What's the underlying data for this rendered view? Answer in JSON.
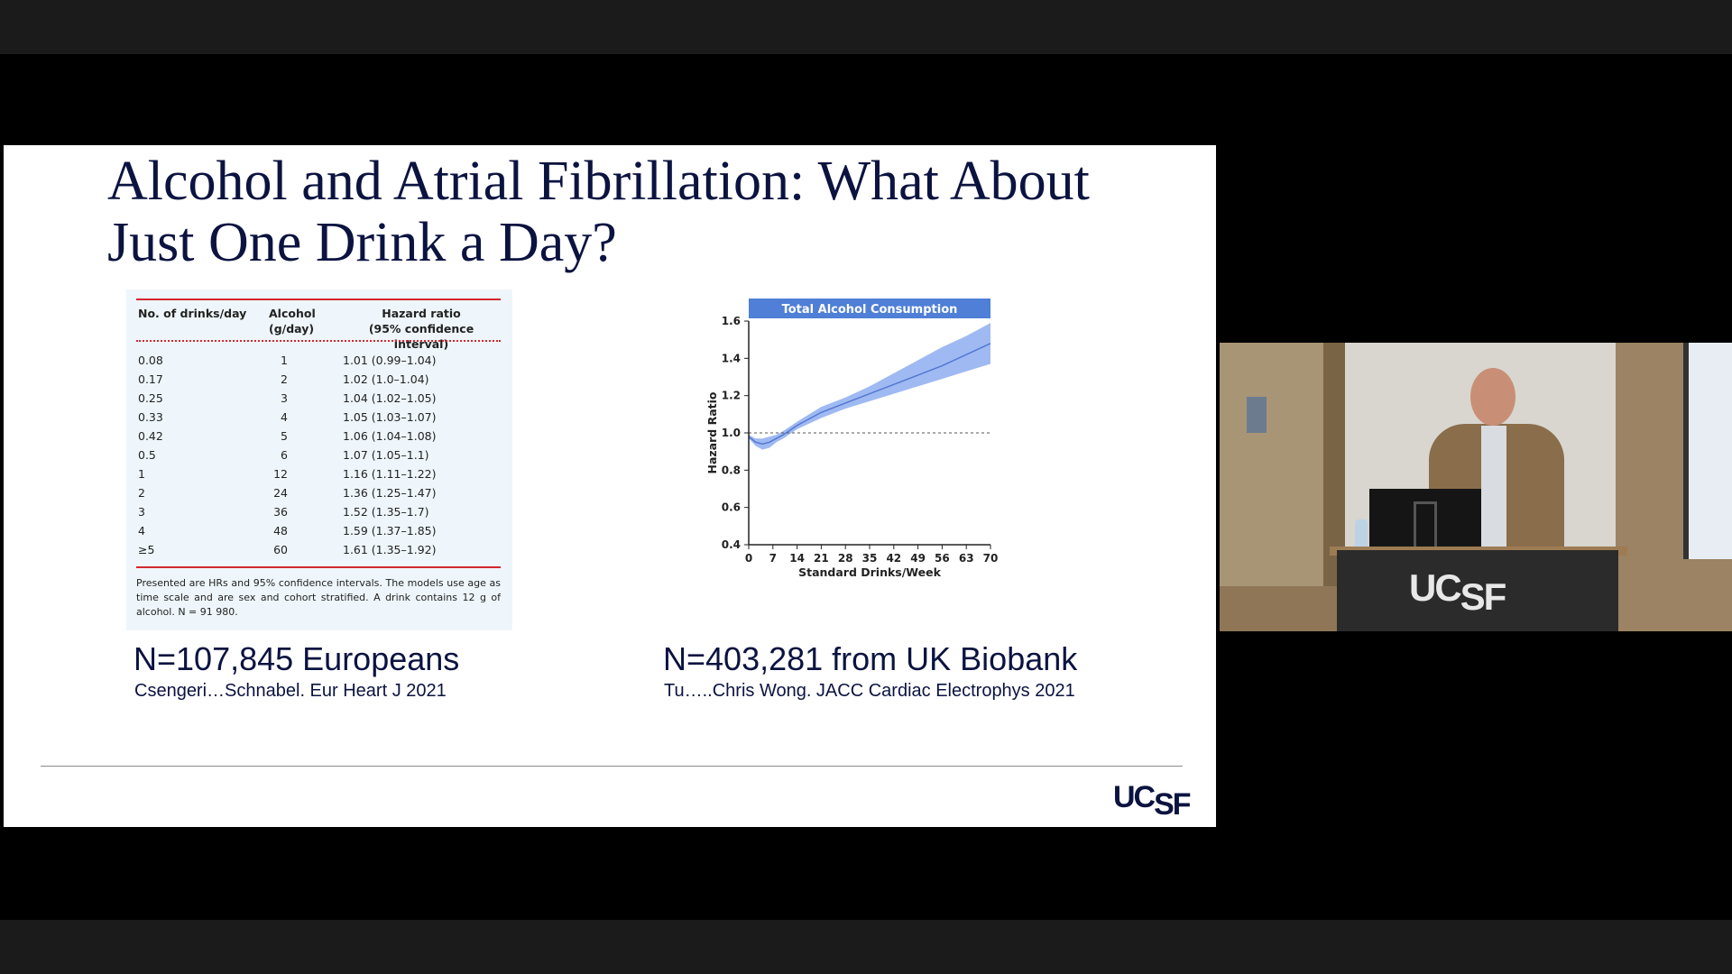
{
  "slide": {
    "title_line1": "Alcohol and Atrial Fibrillation: What About",
    "title_line2": "Just One Drink a Day?",
    "logo": "UCSF",
    "left_figure": {
      "headers": {
        "col1": "No. of drinks/day",
        "col2_line1": "Alcohol",
        "col2_line2": "(g/day)",
        "col3_line1": "Hazard ratio",
        "col3_line2": "(95% confidence interval)"
      },
      "rows": [
        {
          "drinks": "0.08",
          "grams": "1",
          "hr": "1.01 (0.99–1.04)"
        },
        {
          "drinks": "0.17",
          "grams": "2",
          "hr": "1.02 (1.0–1.04)"
        },
        {
          "drinks": "0.25",
          "grams": "3",
          "hr": "1.04 (1.02–1.05)"
        },
        {
          "drinks": "0.33",
          "grams": "4",
          "hr": "1.05 (1.03–1.07)"
        },
        {
          "drinks": "0.42",
          "grams": "5",
          "hr": "1.06 (1.04–1.08)"
        },
        {
          "drinks": "0.5",
          "grams": "6",
          "hr": "1.07 (1.05–1.1)"
        },
        {
          "drinks": "1",
          "grams": "12",
          "hr": "1.16 (1.11–1.22)"
        },
        {
          "drinks": "2",
          "grams": "24",
          "hr": "1.36 (1.25–1.47)"
        },
        {
          "drinks": "3",
          "grams": "36",
          "hr": "1.52 (1.35–1.7)"
        },
        {
          "drinks": "4",
          "grams": "48",
          "hr": "1.59 (1.37–1.85)"
        },
        {
          "drinks": "≥5",
          "grams": "60",
          "hr": "1.61 (1.35–1.92)"
        }
      ],
      "note": "Presented are HRs and 95% confidence intervals. The models use age as time scale and are sex and cohort stratified. A drink contains 12 g of alcohol. N = 91 980.",
      "caption_n": "N=107,845 Europeans",
      "caption_ref": "Csengeri…Schnabel. Eur Heart J 2021"
    },
    "right_figure": {
      "caption_n": "N=403,281 from UK Biobank",
      "caption_ref": "Tu…..Chris Wong. JACC Cardiac Electrophys 2021"
    }
  },
  "webcam": {
    "podium_logo": "UCSF"
  },
  "colors": {
    "title": "#0b1340",
    "table_rule": "#d4262f",
    "chart_header": "#4f7fd6",
    "chart_band": "#8eaef0",
    "chart_line": "#5577d0"
  },
  "chart_data": {
    "type": "line",
    "title": "Total Alcohol Consumption",
    "xlabel": "Standard Drinks/Week",
    "ylabel": "Hazard Ratio",
    "xlim": [
      0,
      70
    ],
    "ylim": [
      0.4,
      1.6
    ],
    "xticks": [
      "0",
      "7",
      "14",
      "21",
      "28",
      "35",
      "42",
      "49",
      "56",
      "63",
      "70"
    ],
    "yticks": [
      "0.4",
      "0.6",
      "0.8",
      "1.0",
      "1.2",
      "1.4",
      "1.6"
    ],
    "reference_line": 1.0,
    "x": [
      0,
      2,
      4,
      6,
      8,
      10,
      14,
      21,
      28,
      35,
      42,
      49,
      56,
      63,
      70
    ],
    "y": [
      0.98,
      0.95,
      0.94,
      0.95,
      0.97,
      0.99,
      1.04,
      1.11,
      1.16,
      1.21,
      1.26,
      1.31,
      1.36,
      1.42,
      1.48
    ],
    "lower": [
      0.97,
      0.93,
      0.91,
      0.92,
      0.95,
      0.97,
      1.02,
      1.08,
      1.13,
      1.17,
      1.21,
      1.25,
      1.29,
      1.33,
      1.37
    ],
    "upper": [
      0.99,
      0.97,
      0.97,
      0.98,
      0.99,
      1.01,
      1.06,
      1.14,
      1.19,
      1.25,
      1.32,
      1.39,
      1.46,
      1.52,
      1.59
    ]
  }
}
